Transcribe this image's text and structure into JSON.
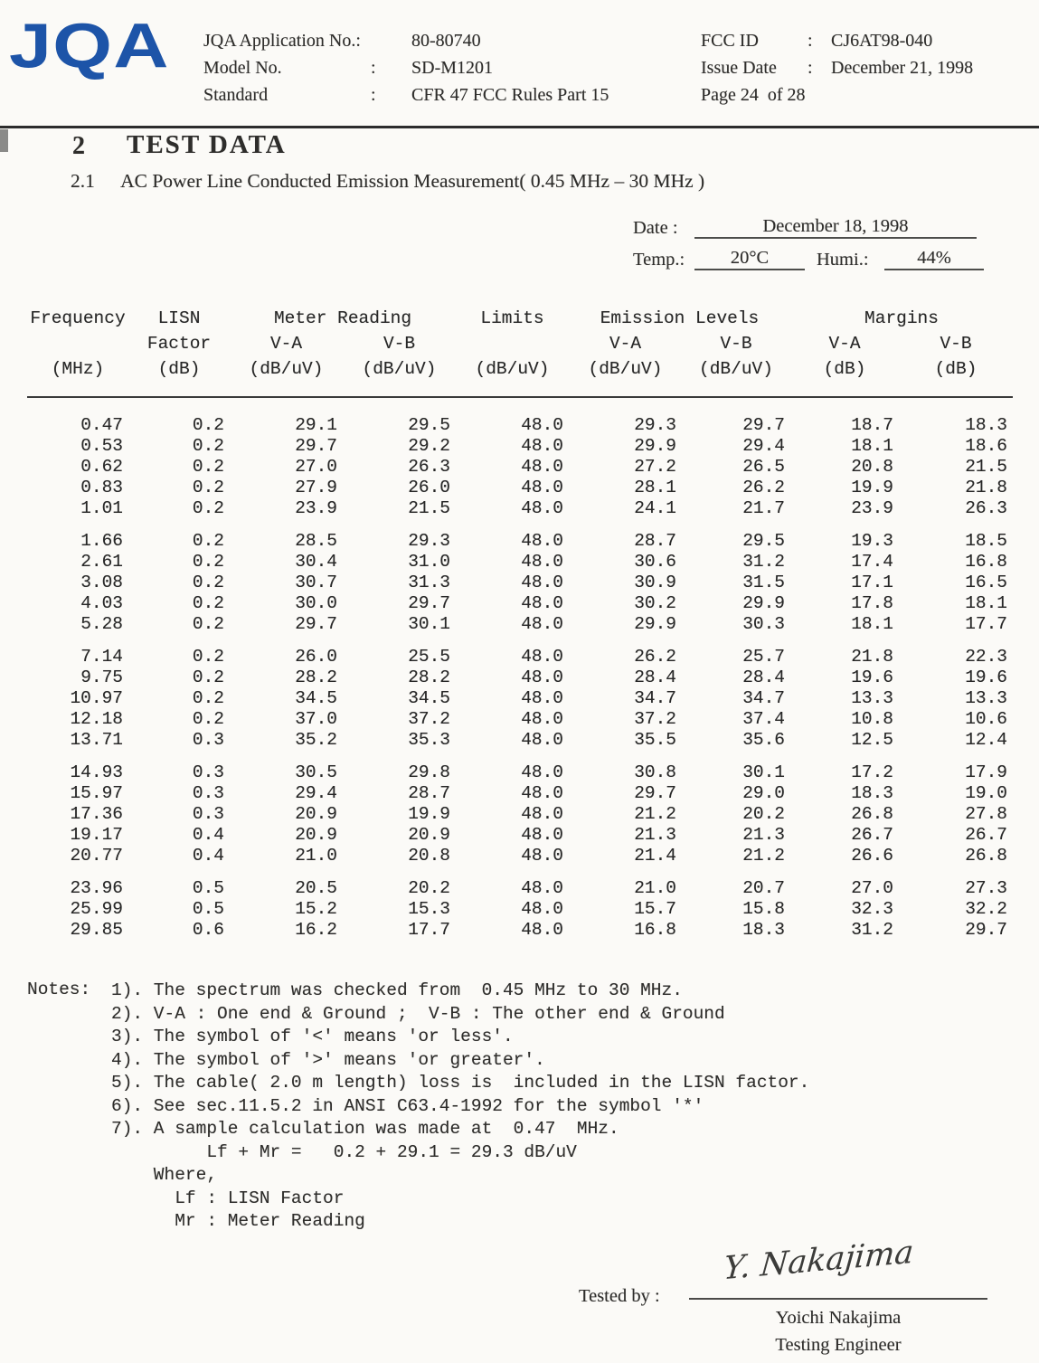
{
  "colors": {
    "logo_blue": "#1d54a8",
    "ink": "#2e2d2b",
    "rule": "#2c2c2c"
  },
  "header": {
    "logo": "JQA",
    "left_fields": [
      {
        "label": "JQA Application No.:",
        "sep": "",
        "value": "80-80740"
      },
      {
        "label": "Model No.",
        "sep": ":",
        "value": "SD-M1201"
      },
      {
        "label": "Standard",
        "sep": ":",
        "value": "CFR 47 FCC Rules Part 15"
      }
    ],
    "right_fields": [
      {
        "label": "FCC ID",
        "sep": ":",
        "value": "CJ6AT98-040"
      },
      {
        "label": "Issue Date",
        "sep": ":",
        "value": "December 21, 1998"
      },
      {
        "label": "Page 24  of 28",
        "sep": "",
        "value": ""
      }
    ]
  },
  "section": {
    "number": "2",
    "title": "TEST DATA"
  },
  "subsection": {
    "number": "2.1",
    "title": "AC Power Line Conducted Emission Measurement( 0.45 MHz – 30 MHz )"
  },
  "conditions": {
    "date_label": "Date :",
    "date_value": "December 18, 1998",
    "temp_label": "Temp.:",
    "temp_value": "20°C",
    "humi_label": "Humi.:",
    "humi_value": "44%"
  },
  "table": {
    "header": {
      "row1": [
        "Frequency",
        "LISN",
        "Meter Reading",
        "Limits",
        "Emission Levels",
        "Margins"
      ],
      "row2": [
        "",
        "Factor",
        "V-A",
        "V-B",
        "",
        "V-A",
        "V-B",
        "V-A",
        "V-B"
      ],
      "row3": [
        "(MHz)",
        "(dB)",
        "(dB/uV)",
        "(dB/uV)",
        "(dB/uV)",
        "(dB/uV)",
        "(dB/uV)",
        "(dB)",
        "(dB)"
      ]
    },
    "groups": [
      [
        [
          "0.47",
          "0.2",
          "29.1",
          "29.5",
          "48.0",
          "29.3",
          "29.7",
          "18.7",
          "18.3"
        ],
        [
          "0.53",
          "0.2",
          "29.7",
          "29.2",
          "48.0",
          "29.9",
          "29.4",
          "18.1",
          "18.6"
        ],
        [
          "0.62",
          "0.2",
          "27.0",
          "26.3",
          "48.0",
          "27.2",
          "26.5",
          "20.8",
          "21.5"
        ],
        [
          "0.83",
          "0.2",
          "27.9",
          "26.0",
          "48.0",
          "28.1",
          "26.2",
          "19.9",
          "21.8"
        ],
        [
          "1.01",
          "0.2",
          "23.9",
          "21.5",
          "48.0",
          "24.1",
          "21.7",
          "23.9",
          "26.3"
        ]
      ],
      [
        [
          "1.66",
          "0.2",
          "28.5",
          "29.3",
          "48.0",
          "28.7",
          "29.5",
          "19.3",
          "18.5"
        ],
        [
          "2.61",
          "0.2",
          "30.4",
          "31.0",
          "48.0",
          "30.6",
          "31.2",
          "17.4",
          "16.8"
        ],
        [
          "3.08",
          "0.2",
          "30.7",
          "31.3",
          "48.0",
          "30.9",
          "31.5",
          "17.1",
          "16.5"
        ],
        [
          "4.03",
          "0.2",
          "30.0",
          "29.7",
          "48.0",
          "30.2",
          "29.9",
          "17.8",
          "18.1"
        ],
        [
          "5.28",
          "0.2",
          "29.7",
          "30.1",
          "48.0",
          "29.9",
          "30.3",
          "18.1",
          "17.7"
        ]
      ],
      [
        [
          "7.14",
          "0.2",
          "26.0",
          "25.5",
          "48.0",
          "26.2",
          "25.7",
          "21.8",
          "22.3"
        ],
        [
          "9.75",
          "0.2",
          "28.2",
          "28.2",
          "48.0",
          "28.4",
          "28.4",
          "19.6",
          "19.6"
        ],
        [
          "10.97",
          "0.2",
          "34.5",
          "34.5",
          "48.0",
          "34.7",
          "34.7",
          "13.3",
          "13.3"
        ],
        [
          "12.18",
          "0.2",
          "37.0",
          "37.2",
          "48.0",
          "37.2",
          "37.4",
          "10.8",
          "10.6"
        ],
        [
          "13.71",
          "0.3",
          "35.2",
          "35.3",
          "48.0",
          "35.5",
          "35.6",
          "12.5",
          "12.4"
        ]
      ],
      [
        [
          "14.93",
          "0.3",
          "30.5",
          "29.8",
          "48.0",
          "30.8",
          "30.1",
          "17.2",
          "17.9"
        ],
        [
          "15.97",
          "0.3",
          "29.4",
          "28.7",
          "48.0",
          "29.7",
          "29.0",
          "18.3",
          "19.0"
        ],
        [
          "17.36",
          "0.3",
          "20.9",
          "19.9",
          "48.0",
          "21.2",
          "20.2",
          "26.8",
          "27.8"
        ],
        [
          "19.17",
          "0.4",
          "20.9",
          "20.9",
          "48.0",
          "21.3",
          "21.3",
          "26.7",
          "26.7"
        ],
        [
          "20.77",
          "0.4",
          "21.0",
          "20.8",
          "48.0",
          "21.4",
          "21.2",
          "26.6",
          "26.8"
        ]
      ],
      [
        [
          "23.96",
          "0.5",
          "20.5",
          "20.2",
          "48.0",
          "21.0",
          "20.7",
          "27.0",
          "27.3"
        ],
        [
          "25.99",
          "0.5",
          "15.2",
          "15.3",
          "48.0",
          "15.7",
          "15.8",
          "32.3",
          "32.2"
        ],
        [
          "29.85",
          "0.6",
          "16.2",
          "17.7",
          "48.0",
          "16.8",
          "18.3",
          "31.2",
          "29.7"
        ]
      ]
    ]
  },
  "notes": {
    "label": "Notes:",
    "lines": [
      "1). The spectrum was checked from  0.45 MHz to 30 MHz.",
      "2). V-A : One end & Ground ;  V-B : The other end & Ground",
      "3). The symbol of '<' means 'or less'.",
      "4). The symbol of '>' means 'or greater'.",
      "5). The cable( 2.0 m length) loss is  included in the LISN factor.",
      "6). See sec.11.5.2 in ANSI C63.4-1992 for the symbol '*'",
      "7). A sample calculation was made at  0.47  MHz.",
      "         Lf + Mr =   0.2 + 29.1 = 29.3 dB/uV",
      "    Where,",
      "      Lf : LISN Factor",
      "      Mr : Meter Reading"
    ]
  },
  "signoff": {
    "label": "Tested by :",
    "signature": "Y. Nakajima",
    "name": "Yoichi Nakajima",
    "title": "Testing Engineer"
  }
}
